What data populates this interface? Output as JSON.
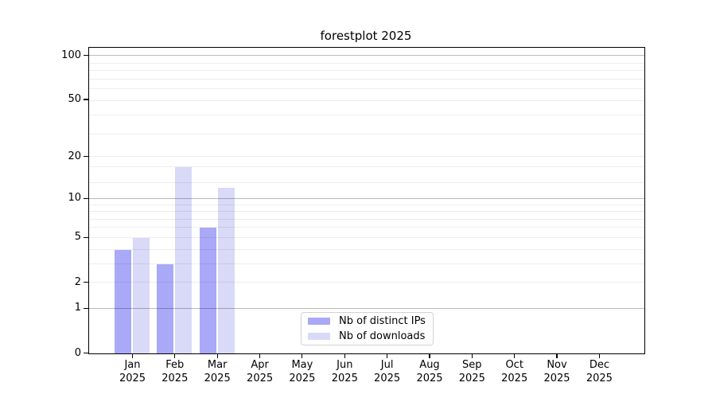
{
  "chart_data": {
    "type": "bar",
    "title": "forestplot 2025",
    "months": [
      "Jan",
      "Feb",
      "Mar",
      "Apr",
      "May",
      "Jun",
      "Jul",
      "Aug",
      "Sep",
      "Oct",
      "Nov",
      "Dec"
    ],
    "year": "2025",
    "series": [
      {
        "name": "Nb of distinct IPs",
        "color": "#a9a9f7",
        "values": [
          4,
          3,
          6,
          0,
          0,
          0,
          0,
          0,
          0,
          0,
          0,
          0
        ]
      },
      {
        "name": "Nb of downloads",
        "color": "#d9d9f8",
        "values": [
          5,
          17,
          12,
          0,
          0,
          0,
          0,
          0,
          0,
          0,
          0,
          0
        ]
      }
    ],
    "yscale": "log10(1+y)",
    "yticks": [
      0,
      1,
      2,
      5,
      10,
      20,
      50,
      100
    ],
    "ylim": [
      0,
      113
    ],
    "grid": {
      "major": [
        1,
        10,
        100
      ],
      "minor": [
        2,
        3,
        4,
        5,
        6,
        7,
        8,
        9,
        13,
        17,
        20,
        29,
        39,
        49,
        59,
        69,
        79,
        89
      ]
    },
    "legend_position": "lower center",
    "grid_over_bars": true
  }
}
